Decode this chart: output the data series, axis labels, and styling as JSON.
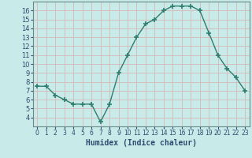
{
  "x": [
    0,
    1,
    2,
    3,
    4,
    5,
    6,
    7,
    8,
    9,
    10,
    11,
    12,
    13,
    14,
    15,
    16,
    17,
    18,
    19,
    20,
    21,
    22,
    23
  ],
  "y": [
    7.5,
    7.5,
    6.5,
    6.0,
    5.5,
    5.5,
    5.5,
    3.5,
    5.5,
    9.0,
    11.0,
    13.0,
    14.5,
    15.0,
    16.0,
    16.5,
    16.5,
    16.5,
    16.0,
    13.5,
    11.0,
    9.5,
    8.5,
    7.0
  ],
  "xlabel": "Humidex (Indice chaleur)",
  "ylim": [
    3.0,
    17.0
  ],
  "xlim": [
    -0.5,
    23.5
  ],
  "yticks": [
    4,
    5,
    6,
    7,
    8,
    9,
    10,
    11,
    12,
    13,
    14,
    15,
    16
  ],
  "xtick_labels": [
    "0",
    "1",
    "2",
    "3",
    "4",
    "5",
    "6",
    "7",
    "8",
    "9",
    "10",
    "11",
    "12",
    "13",
    "14",
    "15",
    "16",
    "17",
    "18",
    "19",
    "20",
    "21",
    "22",
    "23"
  ],
  "line_color": "#2e7d6e",
  "marker": "+",
  "bg_color": "#c8eae8",
  "grid_color": "#d4b8b8",
  "xlabel_color": "#2e4a6e",
  "tick_color": "#2e4a6e",
  "spine_color": "#6a8a8a"
}
